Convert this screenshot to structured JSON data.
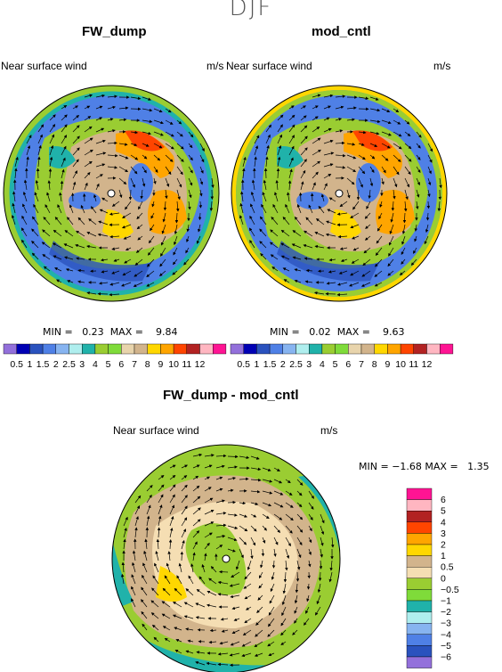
{
  "season": "DJF",
  "panels": [
    {
      "title": "FW_dump",
      "variable": "Near surface wind",
      "units": "m/s",
      "min_label": "MIN =",
      "min": "0.23",
      "max_label": "MAX =",
      "max": "9.84"
    },
    {
      "title": "mod_cntl",
      "variable": "Near surface wind",
      "units": "m/s",
      "min_label": "MIN =",
      "min": "0.02",
      "max_label": "MAX =",
      "max": "9.63"
    }
  ],
  "diff": {
    "title": "FW_dump - mod_cntl",
    "variable": "Near surface wind",
    "units": "m/s",
    "min_label": "MIN =",
    "min": "−1.68",
    "max_label": "MAX =",
    "max": "1.35"
  },
  "colorbar_main": {
    "labels": [
      "0.5",
      "1",
      "1.5",
      "2",
      "2.5",
      "3",
      "4",
      "5",
      "6",
      "7",
      "8",
      "9",
      "10",
      "11",
      "12"
    ],
    "colors": [
      "#9370db",
      "#0000b4",
      "#2a52be",
      "#4f80e6",
      "#87b4f0",
      "#afeeee",
      "#20b2aa",
      "#9acd32",
      "#7fdb3a",
      "#e8d4ac",
      "#d2b48c",
      "#ffd700",
      "#ffa500",
      "#ff4500",
      "#b22222",
      "#ffb6c1",
      "#ff1493"
    ]
  },
  "colorbar_diff": {
    "labels": [
      "6",
      "5",
      "4",
      "3",
      "2",
      "1",
      "0.5",
      "0",
      "−0.5",
      "−1",
      "−2",
      "−3",
      "−4",
      "−5",
      "−6"
    ],
    "colors": [
      "#ff1493",
      "#ffb6c1",
      "#b22222",
      "#ff4500",
      "#ffa500",
      "#ffd700",
      "#d2b48c",
      "#f5deb3",
      "#9acd32",
      "#7fdb3a",
      "#20b2aa",
      "#afeeee",
      "#87b4f0",
      "#4f80e6",
      "#2a52be",
      "#9370db"
    ]
  }
}
